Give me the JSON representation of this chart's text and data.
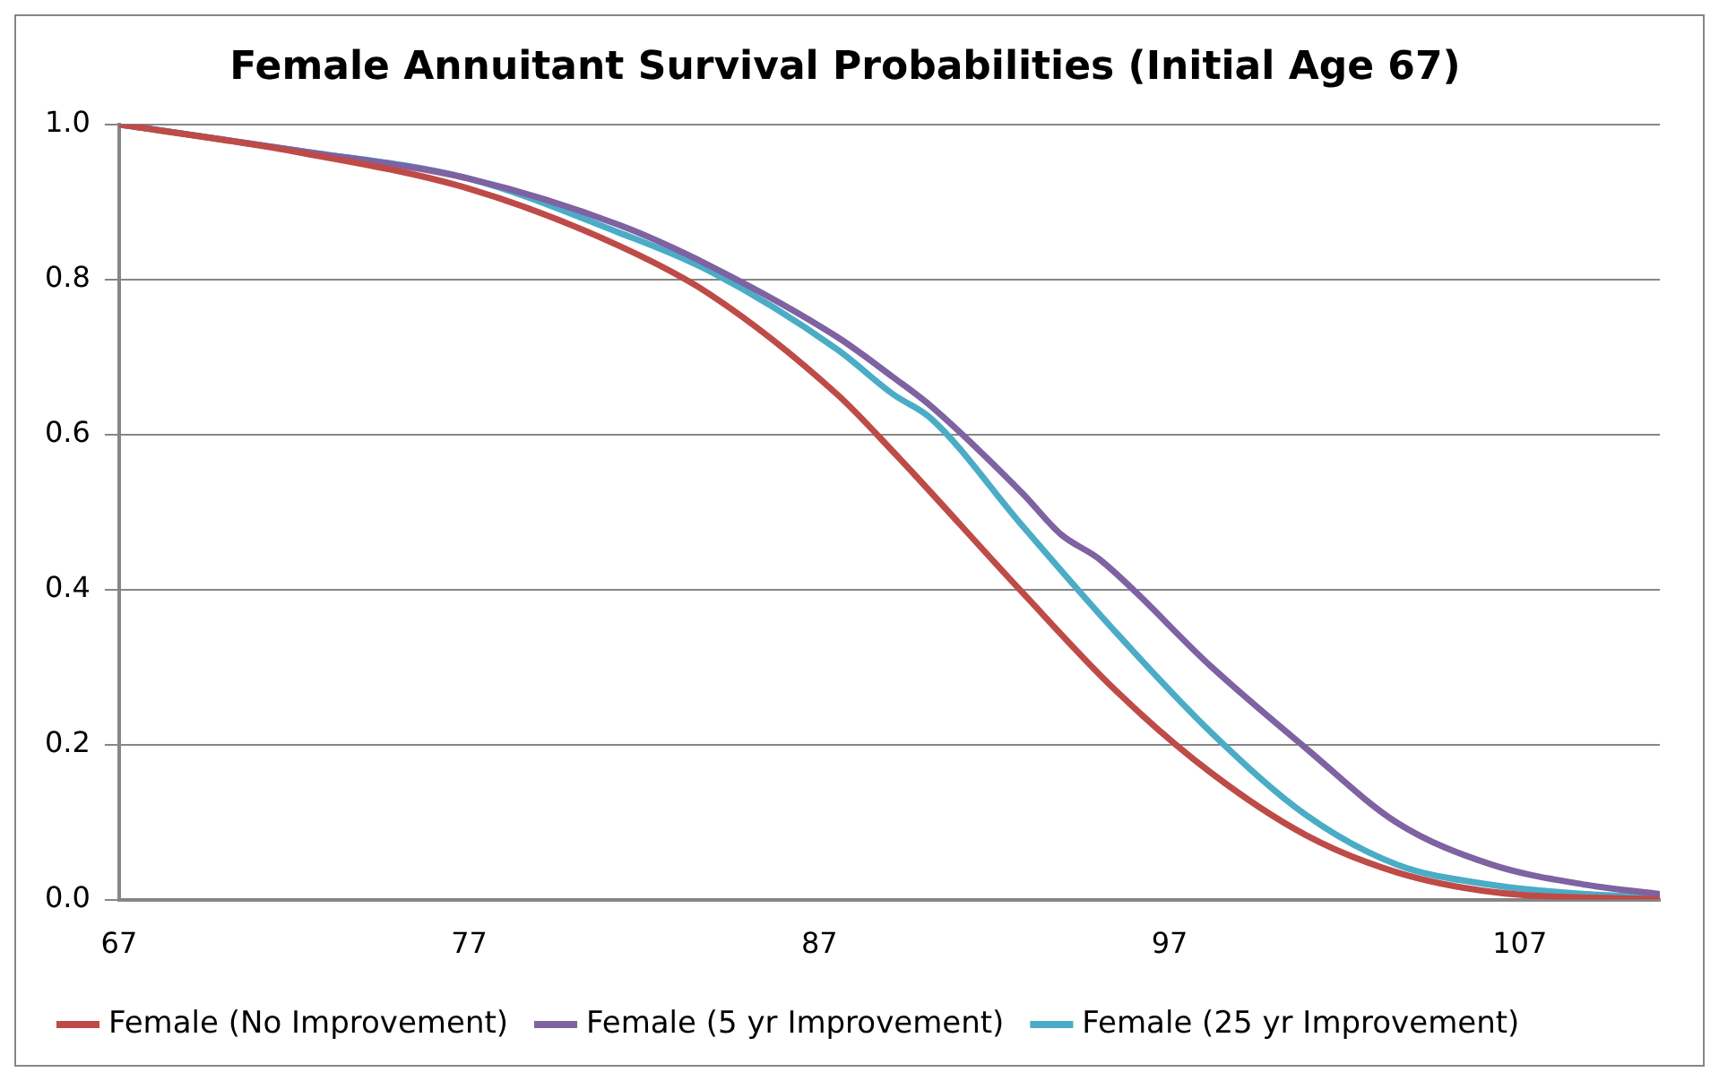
{
  "chart_data": {
    "type": "line",
    "title": "Female Annuitant Survival Probabilities (Initial Age 67)",
    "xlim": [
      67,
      111
    ],
    "xticks": [
      67,
      77,
      87,
      97,
      107
    ],
    "ylim": [
      0,
      1
    ],
    "yticks": [
      {
        "value": 0,
        "label": "0.0"
      },
      {
        "value": 0.2,
        "label": "0.2"
      },
      {
        "value": 0.4,
        "label": "0.4"
      },
      {
        "value": 0.6,
        "label": "0.6"
      },
      {
        "value": 0.8,
        "label": "0.8"
      },
      {
        "value": 1,
        "label": "1.0"
      }
    ],
    "grid": "y",
    "legend": "bottom",
    "marker": "none",
    "line_style": "solid",
    "series": [
      {
        "name": "Female (No Improvement)",
        "color": "#be4b48",
        "x": [
          67,
          72,
          77,
          81.3,
          83.9,
          87.5,
          89.1,
          92.8,
          95.5,
          98.2,
          100.9,
          103.5,
          106.2,
          111
        ],
        "values": [
          1,
          0.965,
          0.917,
          0.843,
          0.78,
          0.652,
          0.578,
          0.396,
          0.268,
          0.163,
          0.083,
          0.035,
          0.01,
          0
        ]
      },
      {
        "name": "Female (5 yr Improvement)",
        "color": "#7e62a1",
        "x": [
          67,
          72,
          77,
          81.3,
          83.9,
          87.5,
          89.1,
          90.2,
          92.8,
          93.9,
          95,
          98.2,
          100.9,
          103.5,
          106.2,
          108.9,
          111
        ],
        "values": [
          1,
          0.967,
          0.93,
          0.87,
          0.817,
          0.726,
          0.674,
          0.636,
          0.524,
          0.471,
          0.439,
          0.3,
          0.195,
          0.099,
          0.045,
          0.019,
          0.007
        ]
      },
      {
        "name": "Female (25 yr Improvement)",
        "color": "#4bacc6",
        "x": [
          67,
          72,
          77,
          81.3,
          83.9,
          87.5,
          89.1,
          90.2,
          92.8,
          95.5,
          98.2,
          100.9,
          103.5,
          106.2,
          108.9,
          111
        ],
        "values": [
          1,
          0.967,
          0.93,
          0.86,
          0.81,
          0.71,
          0.652,
          0.62,
          0.482,
          0.343,
          0.215,
          0.109,
          0.045,
          0.019,
          0.007,
          0.003
        ]
      }
    ]
  }
}
